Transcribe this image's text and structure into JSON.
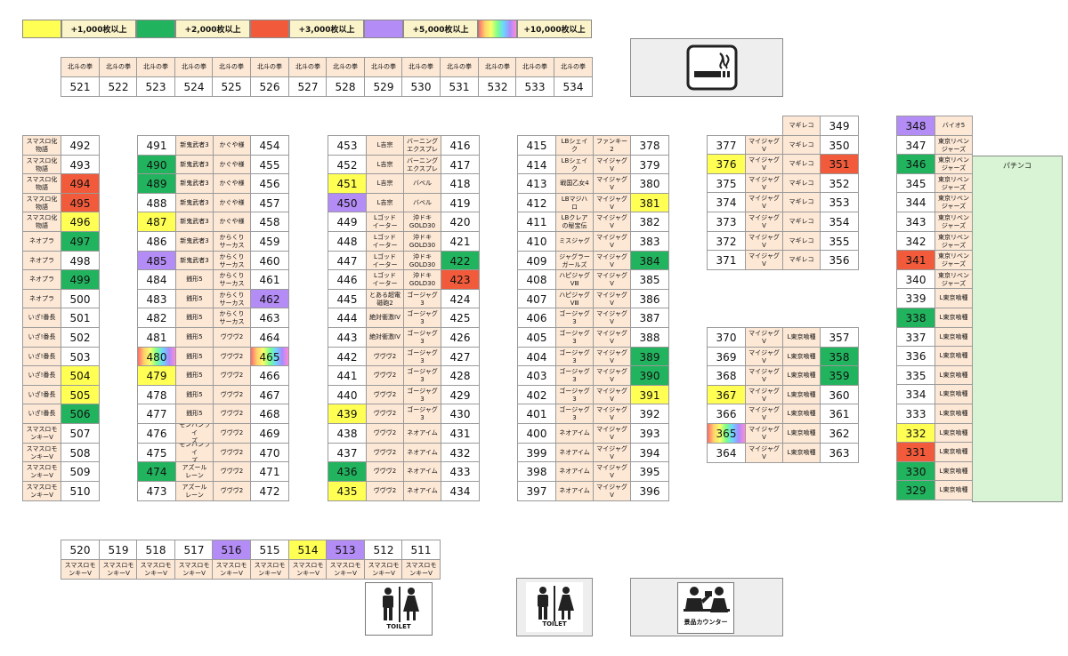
{
  "legend": [
    {
      "label": "+1,000枚以上",
      "color": "#ffff54"
    },
    {
      "label": "+2,000枚以上",
      "color": "#22b35e"
    },
    {
      "label": "+3,000枚以上",
      "color": "#f15a3a"
    },
    {
      "label": "+5,000枚以上",
      "color": "#b48cf5"
    },
    {
      "label": "+10,000枚以上",
      "color": "rainbow"
    }
  ],
  "labels": {
    "pachinko": "パチンコ",
    "toilet": "TOILET",
    "prize_counter": "景品カウンター"
  },
  "top_row": {
    "names": [
      "北斗の拳",
      "北斗の拳",
      "北斗の拳",
      "北斗の拳",
      "北斗の拳",
      "北斗の拳",
      "北斗の拳",
      "北斗の拳",
      "北斗の拳",
      "北斗の拳",
      "北斗の拳",
      "北斗の拳",
      "北斗の拳",
      "北斗の拳"
    ],
    "numbers": [
      "521",
      "522",
      "523",
      "524",
      "525",
      "526",
      "527",
      "528",
      "529",
      "530",
      "531",
      "532",
      "533",
      "534"
    ]
  },
  "bottom_row": {
    "numbers": [
      "520",
      "519",
      "518",
      "517",
      "516",
      "515",
      "514",
      "513",
      "512",
      "511"
    ],
    "names": [
      "スマスロモ\nンキーV",
      "スマスロモ\nンキーV",
      "スマスロモ\nンキーV",
      "スマスロモ\nンキーV",
      "スマスロモ\nンキーV",
      "スマスロモ\nンキーV",
      "スマスロモ\nンキーV",
      "スマスロモ\nンキーV",
      "スマスロモ\nンキーV",
      "スマスロモ\nンキーV"
    ],
    "highlights": [
      "",
      "",
      "",
      "",
      "purple",
      "",
      "yellow",
      "purple",
      "",
      ""
    ]
  },
  "col_a": [
    {
      "name": "スマスロ化\n物語",
      "number": "492",
      "h": ""
    },
    {
      "name": "スマスロ化\n物語",
      "number": "493",
      "h": ""
    },
    {
      "name": "スマスロ化\n物語",
      "number": "494",
      "h": "red"
    },
    {
      "name": "スマスロ化\n物語",
      "number": "495",
      "h": "red"
    },
    {
      "name": "スマスロ化\n物語",
      "number": "496",
      "h": "yellow"
    },
    {
      "name": "ネオプラ",
      "number": "497",
      "h": "green"
    },
    {
      "name": "ネオプラ",
      "number": "498",
      "h": ""
    },
    {
      "name": "ネオプラ",
      "number": "499",
      "h": "green"
    },
    {
      "name": "ネオプラ",
      "number": "500",
      "h": ""
    },
    {
      "name": "いざ!番長",
      "number": "501",
      "h": ""
    },
    {
      "name": "いざ!番長",
      "number": "502",
      "h": ""
    },
    {
      "name": "いざ!番長",
      "number": "503",
      "h": ""
    },
    {
      "name": "いざ!番長",
      "number": "504",
      "h": "yellow"
    },
    {
      "name": "いざ!番長",
      "number": "505",
      "h": "yellow"
    },
    {
      "name": "いざ!番長",
      "number": "506",
      "h": "green"
    },
    {
      "name": "スマスロモ\nンキーV",
      "number": "507",
      "h": ""
    },
    {
      "name": "スマスロモ\nンキーV",
      "number": "508",
      "h": ""
    },
    {
      "name": "スマスロモ\nンキーV",
      "number": "509",
      "h": ""
    },
    {
      "name": "スマスロモ\nンキーV",
      "number": "510",
      "h": ""
    }
  ],
  "col_b": [
    {
      "left": "491",
      "lh": "",
      "ln": "新鬼武者3",
      "rn": "かぐや様",
      "right": "454",
      "rh": ""
    },
    {
      "left": "490",
      "lh": "green",
      "ln": "新鬼武者3",
      "rn": "かぐや様",
      "right": "455",
      "rh": ""
    },
    {
      "left": "489",
      "lh": "green",
      "ln": "新鬼武者3",
      "rn": "かぐや様",
      "right": "456",
      "rh": ""
    },
    {
      "left": "488",
      "lh": "",
      "ln": "新鬼武者3",
      "rn": "かぐや様",
      "right": "457",
      "rh": ""
    },
    {
      "left": "487",
      "lh": "yellow",
      "ln": "新鬼武者3",
      "rn": "かぐや様",
      "right": "458",
      "rh": ""
    },
    {
      "left": "486",
      "lh": "",
      "ln": "新鬼武者3",
      "rn": "からくり\nサーカス",
      "right": "459",
      "rh": ""
    },
    {
      "left": "485",
      "lh": "purple",
      "ln": "新鬼武者3",
      "rn": "からくり\nサーカス",
      "right": "460",
      "rh": ""
    },
    {
      "left": "484",
      "lh": "",
      "ln": "銭形5",
      "rn": "からくり\nサーカス",
      "right": "461",
      "rh": ""
    },
    {
      "left": "483",
      "lh": "",
      "ln": "銭形5",
      "rn": "からくり\nサーカス",
      "right": "462",
      "rh": "purple"
    },
    {
      "left": "482",
      "lh": "",
      "ln": "銭形5",
      "rn": "からくり\nサーカス",
      "right": "463",
      "rh": ""
    },
    {
      "left": "481",
      "lh": "",
      "ln": "銭形5",
      "rn": "ヴヴヴ2",
      "right": "464",
      "rh": ""
    },
    {
      "left": "480",
      "lh": "rainbow",
      "ln": "銭形5",
      "rn": "ヴヴヴ2",
      "right": "465",
      "rh": "rainbow"
    },
    {
      "left": "479",
      "lh": "yellow",
      "ln": "銭形5",
      "rn": "ヴヴヴ2",
      "right": "466",
      "rh": ""
    },
    {
      "left": "478",
      "lh": "",
      "ln": "銭形5",
      "rn": "ヴヴヴ2",
      "right": "467",
      "rh": ""
    },
    {
      "left": "477",
      "lh": "",
      "ln": "銭形5",
      "rn": "ヴヴヴ2",
      "right": "468",
      "rh": ""
    },
    {
      "left": "476",
      "lh": "",
      "ln": "モンハンライ\nズ",
      "rn": "ヴヴヴ2",
      "right": "469",
      "rh": ""
    },
    {
      "left": "475",
      "lh": "",
      "ln": "モンハンライ\nズ",
      "rn": "ヴヴヴ2",
      "right": "470",
      "rh": ""
    },
    {
      "left": "474",
      "lh": "green",
      "ln": "アズール\nレーン",
      "rn": "ヴヴヴ2",
      "right": "471",
      "rh": ""
    },
    {
      "left": "473",
      "lh": "",
      "ln": "アズール\nレーン",
      "rn": "ヴヴヴ2",
      "right": "472",
      "rh": ""
    }
  ],
  "col_c": [
    {
      "left": "453",
      "lh": "",
      "ln": "L吉宗",
      "rn": "バーニング\nエクスプレ",
      "right": "416",
      "rh": ""
    },
    {
      "left": "452",
      "lh": "",
      "ln": "L吉宗",
      "rn": "バーニング\nエクスプレ",
      "right": "417",
      "rh": ""
    },
    {
      "left": "451",
      "lh": "yellow",
      "ln": "L吉宗",
      "rn": "バベル",
      "right": "418",
      "rh": ""
    },
    {
      "left": "450",
      "lh": "purple",
      "ln": "L吉宗",
      "rn": "バベル",
      "right": "419",
      "rh": ""
    },
    {
      "left": "449",
      "lh": "",
      "ln": "Lゴッド\nイーター",
      "rn": "沖ドキ\nGOLD30",
      "right": "420",
      "rh": ""
    },
    {
      "left": "448",
      "lh": "",
      "ln": "Lゴッド\nイーター",
      "rn": "沖ドキ\nGOLD30",
      "right": "421",
      "rh": ""
    },
    {
      "left": "447",
      "lh": "",
      "ln": "Lゴッド\nイーター",
      "rn": "沖ドキ\nGOLD30",
      "right": "422",
      "rh": "green"
    },
    {
      "left": "446",
      "lh": "",
      "ln": "Lゴッド\nイーター",
      "rn": "沖ドキ\nGOLD30",
      "right": "423",
      "rh": "red"
    },
    {
      "left": "445",
      "lh": "",
      "ln": "とある超電\n磁砲2",
      "rn": "ゴージャグ\n3",
      "right": "424",
      "rh": ""
    },
    {
      "left": "444",
      "lh": "",
      "ln": "絶対衝激IV",
      "rn": "ゴージャグ\n3",
      "right": "425",
      "rh": ""
    },
    {
      "left": "443",
      "lh": "",
      "ln": "絶対衝激IV",
      "rn": "ゴージャグ\n3",
      "right": "426",
      "rh": ""
    },
    {
      "left": "442",
      "lh": "",
      "ln": "ヴヴヴ2",
      "rn": "ゴージャグ\n3",
      "right": "427",
      "rh": ""
    },
    {
      "left": "441",
      "lh": "",
      "ln": "ヴヴヴ2",
      "rn": "ゴージャグ\n3",
      "right": "428",
      "rh": ""
    },
    {
      "left": "440",
      "lh": "",
      "ln": "ヴヴヴ2",
      "rn": "ゴージャグ\n3",
      "right": "429",
      "rh": ""
    },
    {
      "left": "439",
      "lh": "yellow",
      "ln": "ヴヴヴ2",
      "rn": "ゴージャグ\n3",
      "right": "430",
      "rh": ""
    },
    {
      "left": "438",
      "lh": "",
      "ln": "ヴヴヴ2",
      "rn": "ネオアイム",
      "right": "431",
      "rh": ""
    },
    {
      "left": "437",
      "lh": "",
      "ln": "ヴヴヴ2",
      "rn": "ネオアイム",
      "right": "432",
      "rh": ""
    },
    {
      "left": "436",
      "lh": "green",
      "ln": "ヴヴヴ2",
      "rn": "ネオアイム",
      "right": "433",
      "rh": ""
    },
    {
      "left": "435",
      "lh": "yellow",
      "ln": "ヴヴヴ2",
      "rn": "ネオアイム",
      "right": "434",
      "rh": ""
    }
  ],
  "col_d": [
    {
      "left": "415",
      "lh": "",
      "ln": "LBシェイ\nク",
      "rn": "ファンキー\n2",
      "right": "378",
      "rh": ""
    },
    {
      "left": "414",
      "lh": "",
      "ln": "LBシェイ\nク",
      "rn": "マイジャグ\nV",
      "right": "379",
      "rh": ""
    },
    {
      "left": "413",
      "lh": "",
      "ln": "戦国乙女4",
      "rn": "マイジャグ\nV",
      "right": "380",
      "rh": ""
    },
    {
      "left": "412",
      "lh": "",
      "ln": "LBマジハ\nロ",
      "rn": "マイジャグ\nV",
      "right": "381",
      "rh": "yellow"
    },
    {
      "left": "411",
      "lh": "",
      "ln": "LBクレア\nの秘宝伝",
      "rn": "マイジャグ\nV",
      "right": "382",
      "rh": ""
    },
    {
      "left": "410",
      "lh": "",
      "ln": "ミスジャグ",
      "rn": "マイジャグ\nV",
      "right": "383",
      "rh": ""
    },
    {
      "left": "409",
      "lh": "",
      "ln": "ジャグラー\nガールズ",
      "rn": "マイジャグ\nV",
      "right": "384",
      "rh": "green"
    },
    {
      "left": "408",
      "lh": "",
      "ln": "ハピジャグ\nVⅢ",
      "rn": "マイジャグ\nV",
      "right": "385",
      "rh": ""
    },
    {
      "left": "407",
      "lh": "",
      "ln": "ハピジャグ\nVⅢ",
      "rn": "マイジャグ\nV",
      "right": "386",
      "rh": ""
    },
    {
      "left": "406",
      "lh": "",
      "ln": "ゴージャグ\n3",
      "rn": "マイジャグ\nV",
      "right": "387",
      "rh": ""
    },
    {
      "left": "405",
      "lh": "",
      "ln": "ゴージャグ\n3",
      "rn": "マイジャグ\nV",
      "right": "388",
      "rh": ""
    },
    {
      "left": "404",
      "lh": "",
      "ln": "ゴージャグ\n3",
      "rn": "マイジャグ\nV",
      "right": "389",
      "rh": "green"
    },
    {
      "left": "403",
      "lh": "",
      "ln": "ゴージャグ\n3",
      "rn": "マイジャグ\nV",
      "right": "390",
      "rh": "green"
    },
    {
      "left": "402",
      "lh": "",
      "ln": "ゴージャグ\n3",
      "rn": "マイジャグ\nV",
      "right": "391",
      "rh": "yellow"
    },
    {
      "left": "401",
      "lh": "",
      "ln": "ゴージャグ\n3",
      "rn": "マイジャグ\nV",
      "right": "392",
      "rh": ""
    },
    {
      "left": "400",
      "lh": "",
      "ln": "ネオアイム",
      "rn": "マイジャグ\nV",
      "right": "393",
      "rh": ""
    },
    {
      "left": "399",
      "lh": "",
      "ln": "ネオアイム",
      "rn": "マイジャグ\nV",
      "right": "394",
      "rh": ""
    },
    {
      "left": "398",
      "lh": "",
      "ln": "ネオアイム",
      "rn": "マイジャグ\nV",
      "right": "395",
      "rh": ""
    },
    {
      "left": "397",
      "lh": "",
      "ln": "ネオアイム",
      "rn": "マイジャグ\nV",
      "right": "396",
      "rh": ""
    }
  ],
  "col_e_top": [
    {
      "left": "",
      "lh": "",
      "ln": "",
      "rn": "マギレコ",
      "right": "349",
      "rh": ""
    },
    {
      "left": "377",
      "lh": "",
      "ln": "マイジャグ\nV",
      "rn": "マギレコ",
      "right": "350",
      "rh": ""
    },
    {
      "left": "376",
      "lh": "yellow",
      "ln": "マイジャグ\nV",
      "rn": "マギレコ",
      "right": "351",
      "rh": "red"
    },
    {
      "left": "375",
      "lh": "",
      "ln": "マイジャグ\nV",
      "rn": "マギレコ",
      "right": "352",
      "rh": ""
    },
    {
      "left": "374",
      "lh": "",
      "ln": "マイジャグ\nV",
      "rn": "マギレコ",
      "right": "353",
      "rh": ""
    },
    {
      "left": "373",
      "lh": "",
      "ln": "マイジャグ\nV",
      "rn": "マギレコ",
      "right": "354",
      "rh": ""
    },
    {
      "left": "372",
      "lh": "",
      "ln": "マイジャグ\nV",
      "rn": "マギレコ",
      "right": "355",
      "rh": ""
    },
    {
      "left": "371",
      "lh": "",
      "ln": "マイジャグ\nV",
      "rn": "マギレコ",
      "right": "356",
      "rh": ""
    }
  ],
  "col_e_bottom": [
    {
      "left": "370",
      "lh": "",
      "ln": "マイジャグ\nV",
      "rn": "L東京喰種",
      "right": "357",
      "rh": ""
    },
    {
      "left": "369",
      "lh": "",
      "ln": "マイジャグ\nV",
      "rn": "L東京喰種",
      "right": "358",
      "rh": "green"
    },
    {
      "left": "368",
      "lh": "",
      "ln": "マイジャグ\nV",
      "rn": "L東京喰種",
      "right": "359",
      "rh": "green"
    },
    {
      "left": "367",
      "lh": "yellow",
      "ln": "マイジャグ\nV",
      "rn": "L東京喰種",
      "right": "360",
      "rh": ""
    },
    {
      "left": "366",
      "lh": "",
      "ln": "マイジャグ\nV",
      "rn": "L東京喰種",
      "right": "361",
      "rh": ""
    },
    {
      "left": "365",
      "lh": "rainbow",
      "ln": "マイジャグ\nV",
      "rn": "L東京喰種",
      "right": "362",
      "rh": ""
    },
    {
      "left": "364",
      "lh": "",
      "ln": "マイジャグ\nV",
      "rn": "L東京喰種",
      "right": "363",
      "rh": ""
    }
  ],
  "col_f": [
    {
      "number": "348",
      "h": "purple",
      "name": "バイオ5"
    },
    {
      "number": "347",
      "h": "",
      "name": "東京リベン\nジャーズ"
    },
    {
      "number": "346",
      "h": "green",
      "name": "東京リベン\nジャーズ"
    },
    {
      "number": "345",
      "h": "",
      "name": "東京リベン\nジャーズ"
    },
    {
      "number": "344",
      "h": "",
      "name": "東京リベン\nジャーズ"
    },
    {
      "number": "343",
      "h": "",
      "name": "東京リベン\nジャーズ"
    },
    {
      "number": "342",
      "h": "",
      "name": "東京リベン\nジャーズ"
    },
    {
      "number": "341",
      "h": "red",
      "name": "東京リベン\nジャーズ"
    },
    {
      "number": "340",
      "h": "",
      "name": "東京リベン\nジャーズ"
    },
    {
      "number": "339",
      "h": "",
      "name": "L東京喰種"
    },
    {
      "number": "338",
      "h": "green",
      "name": "L東京喰種"
    },
    {
      "number": "337",
      "h": "",
      "name": "L東京喰種"
    },
    {
      "number": "336",
      "h": "",
      "name": "L東京喰種"
    },
    {
      "number": "335",
      "h": "",
      "name": "L東京喰種"
    },
    {
      "number": "334",
      "h": "",
      "name": "L東京喰種"
    },
    {
      "number": "333",
      "h": "",
      "name": "L東京喰種"
    },
    {
      "number": "332",
      "h": "yellow",
      "name": "L東京喰種"
    },
    {
      "number": "331",
      "h": "red",
      "name": "L東京喰種"
    },
    {
      "number": "330",
      "h": "green",
      "name": "L東京喰種"
    },
    {
      "number": "329",
      "h": "green",
      "name": "L東京喰種"
    }
  ]
}
